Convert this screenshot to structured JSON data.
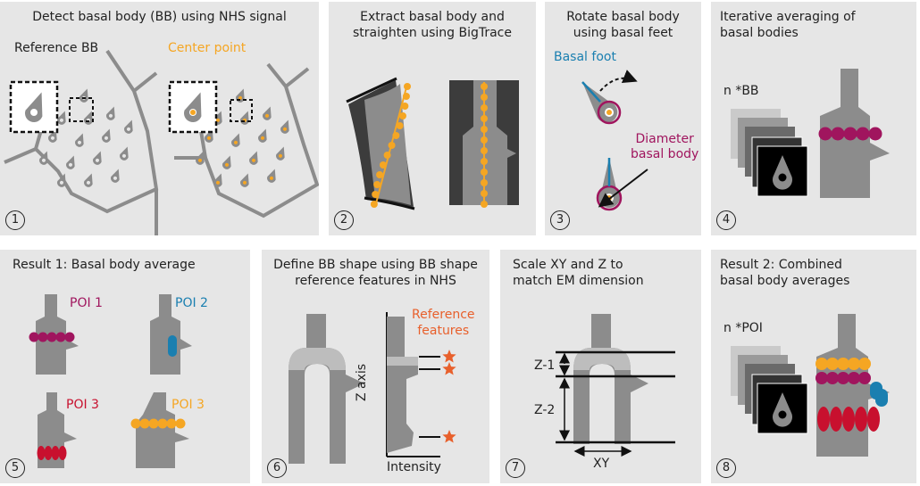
{
  "colors": {
    "orange": "#f5a623",
    "magenta": "#a0155e",
    "blue": "#1a7fb0",
    "red": "#c8102e",
    "star": "#e8602c",
    "gray": "#8c8c8c",
    "dark": "#3c3c3c",
    "light": "#bdbdbd"
  },
  "panels": [
    {
      "number": "1",
      "title": "Detect basal body (BB) using NHS signal",
      "labels": {
        "reference": "Reference BB",
        "center": "Center point"
      }
    },
    {
      "number": "2",
      "title": "Extract basal body and\nstraighten using BigTrace"
    },
    {
      "number": "3",
      "title": "Rotate basal body\nusing basal feet",
      "labels": {
        "foot": "Basal foot",
        "diameter": "Diameter\nbasal body"
      }
    },
    {
      "number": "4",
      "title": "Iterative averaging of\nbasal bodies",
      "labels": {
        "nbb": "n *BB"
      }
    },
    {
      "number": "5",
      "title": "Result 1: Basal body average",
      "labels": {
        "poi1": "POI 1",
        "poi2": "POI 2",
        "poi3a": "POI 3",
        "poi3b": "POI 3"
      }
    },
    {
      "number": "6",
      "title": "Define BB shape using BB shape\nreference features in NHS",
      "labels": {
        "ref": "Reference\nfeatures",
        "zaxis": "Z axis",
        "intensity": "Intensity"
      }
    },
    {
      "number": "7",
      "title": "Scale XY and Z to\nmatch EM dimension",
      "labels": {
        "z1": "Z-1",
        "z2": "Z-2",
        "xy": "XY"
      }
    },
    {
      "number": "8",
      "title": "Result 2: Combined\nbasal body averages",
      "labels": {
        "npoi": "n *POI"
      }
    }
  ]
}
